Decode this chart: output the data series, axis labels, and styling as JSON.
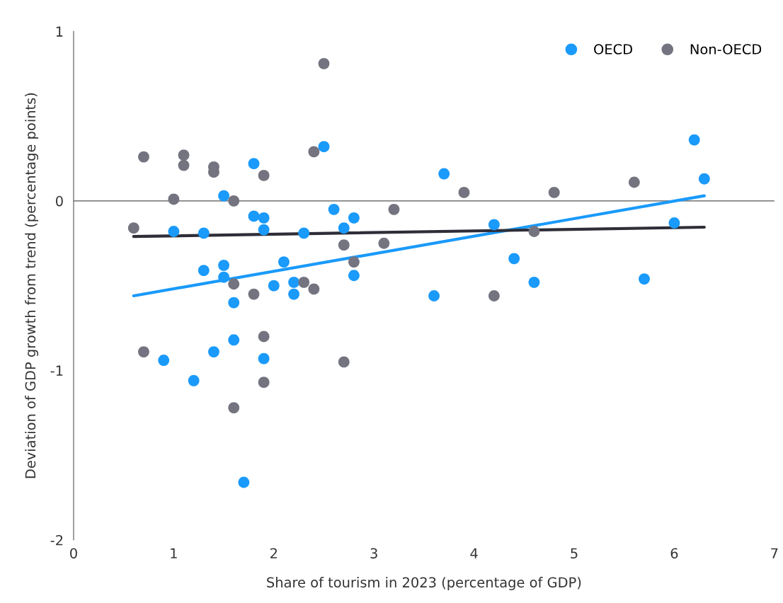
{
  "chart_data": {
    "type": "scatter",
    "xlabel": "Share of tourism in 2023 (percentage of GDP)",
    "ylabel": "Deviation of GDP growth from trend (percentage points)",
    "xlim": [
      0,
      7
    ],
    "ylim": [
      -2,
      1
    ],
    "xticks": [
      0,
      1,
      2,
      3,
      4,
      5,
      6,
      7
    ],
    "yticks": [
      -2,
      -1,
      0,
      1
    ],
    "legend": "top right",
    "grid": false,
    "ref_lines": [
      {
        "axis": "y",
        "value": 0,
        "color": "#555555"
      }
    ],
    "series": [
      {
        "name": "OECD",
        "color": "#1a9afa",
        "marker": "circle",
        "x": [
          1.0,
          1.3,
          1.5,
          1.8,
          1.8,
          1.9,
          1.9,
          1.3,
          1.5,
          1.5,
          1.6,
          2.1,
          2.0,
          2.2,
          2.2,
          2.3,
          2.5,
          2.6,
          2.7,
          2.8,
          2.8,
          1.6,
          1.4,
          0.9,
          1.9,
          1.2,
          1.7,
          3.6,
          3.7,
          4.2,
          4.4,
          4.6,
          5.7,
          6.0,
          6.2,
          6.3
        ],
        "values": [
          -0.18,
          -0.19,
          0.03,
          0.22,
          -0.09,
          -0.1,
          -0.17,
          -0.41,
          -0.38,
          -0.45,
          -0.6,
          -0.36,
          -0.5,
          -0.48,
          -0.55,
          -0.19,
          0.32,
          -0.05,
          -0.16,
          -0.1,
          -0.44,
          -0.82,
          -0.89,
          -0.94,
          -0.93,
          -1.06,
          -1.66,
          -0.56,
          0.16,
          -0.14,
          -0.34,
          -0.48,
          -0.46,
          -0.13,
          0.36,
          0.13
        ]
      },
      {
        "name": "Non-OECD",
        "color": "#747480",
        "marker": "circle",
        "x": [
          0.6,
          0.7,
          0.7,
          1.0,
          1.1,
          1.1,
          1.4,
          1.4,
          1.6,
          1.6,
          1.6,
          1.8,
          1.9,
          1.9,
          1.9,
          2.3,
          2.4,
          2.4,
          2.5,
          2.7,
          2.7,
          2.8,
          3.1,
          3.2,
          3.9,
          4.2,
          4.6,
          4.8,
          5.6
        ],
        "values": [
          -0.16,
          0.26,
          -0.89,
          0.01,
          0.27,
          0.21,
          0.2,
          0.17,
          0.0,
          -0.49,
          -1.22,
          -0.55,
          0.15,
          -0.8,
          -1.07,
          -0.48,
          -0.52,
          0.29,
          0.81,
          -0.26,
          -0.95,
          -0.36,
          -0.25,
          -0.05,
          0.05,
          -0.56,
          -0.18,
          0.05,
          0.11
        ]
      },
      {
        "type": "line",
        "color": "#1a9afa",
        "x": [
          0.6,
          6.3
        ],
        "values": [
          -0.56,
          0.03
        ]
      },
      {
        "type": "line",
        "color": "#2e2e38",
        "x": [
          0.6,
          6.3
        ],
        "values": [
          -0.21,
          -0.155
        ]
      }
    ]
  }
}
